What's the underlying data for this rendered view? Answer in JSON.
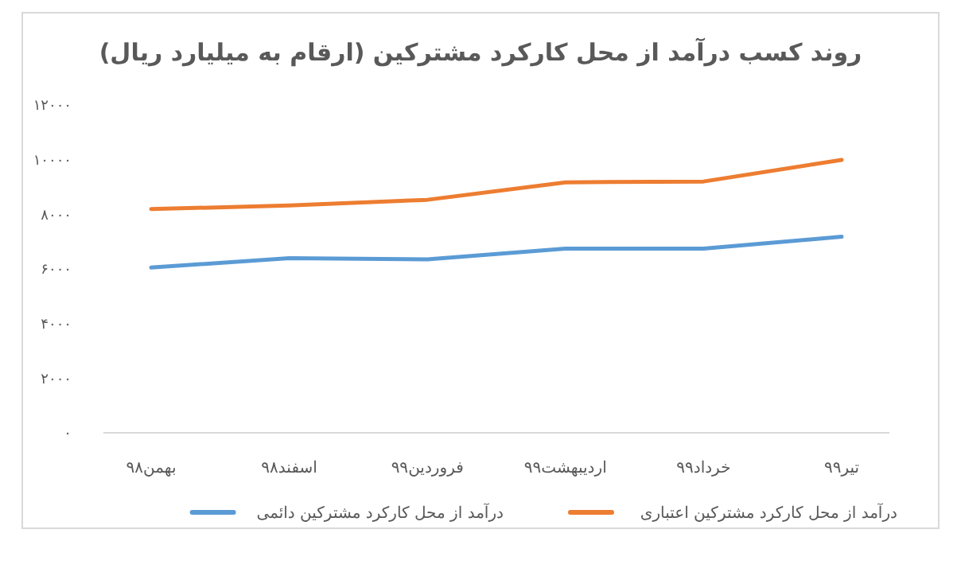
{
  "chart_data": {
    "type": "line",
    "title": "روند کسب درآمد از محل کارکرد مشترکین (ارقام به میلیارد ریال)",
    "categories": [
      "بهمن۹۸",
      "اسفند۹۸",
      "فروردین۹۹",
      "اردیبهشت۹۹",
      "خرداد۹۹",
      "تیر۹۹"
    ],
    "series": [
      {
        "name": "درآمد از محل کارکرد مشترکین اعتباری",
        "color": "#ed7d31",
        "values": [
          8190,
          8320,
          8530,
          9170,
          9200,
          9990
        ]
      },
      {
        "name": "درآمد از محل کارکرد مشترکین دائمی",
        "color": "#5b9bd5",
        "values": [
          6050,
          6390,
          6350,
          6740,
          6740,
          7180
        ]
      }
    ],
    "ylim": [
      0,
      12000
    ],
    "yticks": [
      {
        "value": 0,
        "label": "۰"
      },
      {
        "value": 2000,
        "label": "۲۰۰۰"
      },
      {
        "value": 4000,
        "label": "۴۰۰۰"
      },
      {
        "value": 6000,
        "label": "۶۰۰۰"
      },
      {
        "value": 8000,
        "label": "۸۰۰۰"
      },
      {
        "value": 10000,
        "label": "۱۰۰۰۰"
      },
      {
        "value": 12000,
        "label": "۱۲۰۰۰"
      }
    ],
    "legend": "bottom",
    "marker": "none",
    "line_style": "solid"
  }
}
